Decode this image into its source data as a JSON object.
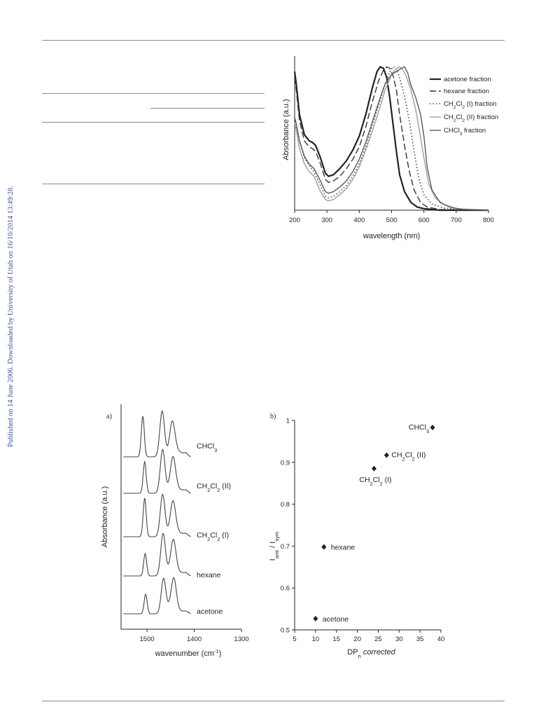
{
  "side_note": "Published on 14 June 2006. Downloaded by University of Utah on 16/10/2014 13:49:28.",
  "chart_data": [
    {
      "type": "line",
      "xlabel": "wavelength (nm)",
      "ylabel": "Absorbance (a.u.)",
      "xlim": [
        200,
        800
      ],
      "ylim": [
        0,
        1.0
      ],
      "x_ticks": [
        "200",
        "300",
        "400",
        "500",
        "600",
        "700",
        "800"
      ],
      "legend": "top-right",
      "series": [
        {
          "name": "acetone fraction",
          "style": "solid-bold",
          "color": "#222222",
          "points": [
            [
              200,
              0.9
            ],
            [
              205,
              0.82
            ],
            [
              215,
              0.62
            ],
            [
              230,
              0.49
            ],
            [
              245,
              0.45
            ],
            [
              255,
              0.44
            ],
            [
              265,
              0.42
            ],
            [
              280,
              0.34
            ],
            [
              295,
              0.24
            ],
            [
              305,
              0.22
            ],
            [
              320,
              0.23
            ],
            [
              340,
              0.27
            ],
            [
              360,
              0.32
            ],
            [
              380,
              0.39
            ],
            [
              400,
              0.48
            ],
            [
              420,
              0.62
            ],
            [
              440,
              0.79
            ],
            [
              455,
              0.9
            ],
            [
              465,
              0.93
            ],
            [
              475,
              0.92
            ],
            [
              485,
              0.86
            ],
            [
              495,
              0.72
            ],
            [
              505,
              0.55
            ],
            [
              515,
              0.38
            ],
            [
              525,
              0.23
            ],
            [
              540,
              0.12
            ],
            [
              560,
              0.05
            ],
            [
              580,
              0.02
            ],
            [
              600,
              0.01
            ],
            [
              650,
              0.0
            ],
            [
              800,
              0.0
            ]
          ]
        },
        {
          "name": "hexane fraction",
          "style": "dash-long",
          "color": "#333333",
          "points": [
            [
              200,
              0.86
            ],
            [
              205,
              0.78
            ],
            [
              215,
              0.58
            ],
            [
              230,
              0.45
            ],
            [
              245,
              0.41
            ],
            [
              255,
              0.4
            ],
            [
              265,
              0.38
            ],
            [
              280,
              0.3
            ],
            [
              295,
              0.2
            ],
            [
              305,
              0.18
            ],
            [
              320,
              0.19
            ],
            [
              340,
              0.22
            ],
            [
              360,
              0.27
            ],
            [
              380,
              0.33
            ],
            [
              400,
              0.41
            ],
            [
              420,
              0.54
            ],
            [
              440,
              0.7
            ],
            [
              460,
              0.84
            ],
            [
              475,
              0.91
            ],
            [
              485,
              0.93
            ],
            [
              495,
              0.92
            ],
            [
              505,
              0.87
            ],
            [
              515,
              0.78
            ],
            [
              525,
              0.62
            ],
            [
              540,
              0.42
            ],
            [
              555,
              0.25
            ],
            [
              570,
              0.13
            ],
            [
              590,
              0.05
            ],
            [
              610,
              0.02
            ],
            [
              650,
              0.005
            ],
            [
              800,
              0.0
            ]
          ]
        },
        {
          "name": "CH₂Cl₂ (I) fraction",
          "style": "dotted",
          "color": "#444444",
          "points": [
            [
              200,
              0.6
            ],
            [
              205,
              0.56
            ],
            [
              215,
              0.45
            ],
            [
              230,
              0.34
            ],
            [
              245,
              0.29
            ],
            [
              260,
              0.25
            ],
            [
              280,
              0.16
            ],
            [
              295,
              0.09
            ],
            [
              305,
              0.08
            ],
            [
              320,
              0.09
            ],
            [
              340,
              0.12
            ],
            [
              360,
              0.16
            ],
            [
              380,
              0.22
            ],
            [
              400,
              0.3
            ],
            [
              420,
              0.41
            ],
            [
              440,
              0.55
            ],
            [
              460,
              0.68
            ],
            [
              480,
              0.82
            ],
            [
              495,
              0.9
            ],
            [
              505,
              0.93
            ],
            [
              515,
              0.92
            ],
            [
              525,
              0.86
            ],
            [
              540,
              0.74
            ],
            [
              555,
              0.58
            ],
            [
              570,
              0.38
            ],
            [
              585,
              0.2
            ],
            [
              600,
              0.1
            ],
            [
              625,
              0.04
            ],
            [
              660,
              0.015
            ],
            [
              700,
              0.005
            ],
            [
              800,
              0.0
            ]
          ]
        },
        {
          "name": "CH₂Cl₂ (II) fraction",
          "style": "solid-light",
          "color": "#a8a8a8",
          "points": [
            [
              200,
              0.57
            ],
            [
              205,
              0.52
            ],
            [
              215,
              0.4
            ],
            [
              230,
              0.3
            ],
            [
              245,
              0.25
            ],
            [
              260,
              0.22
            ],
            [
              280,
              0.12
            ],
            [
              295,
              0.07
            ],
            [
              305,
              0.06
            ],
            [
              320,
              0.07
            ],
            [
              340,
              0.1
            ],
            [
              360,
              0.14
            ],
            [
              380,
              0.2
            ],
            [
              400,
              0.28
            ],
            [
              420,
              0.39
            ],
            [
              440,
              0.51
            ],
            [
              460,
              0.64
            ],
            [
              480,
              0.78
            ],
            [
              500,
              0.88
            ],
            [
              515,
              0.92
            ],
            [
              525,
              0.93
            ],
            [
              535,
              0.91
            ],
            [
              545,
              0.87
            ],
            [
              560,
              0.78
            ],
            [
              575,
              0.65
            ],
            [
              590,
              0.47
            ],
            [
              600,
              0.34
            ],
            [
              615,
              0.17
            ],
            [
              635,
              0.08
            ],
            [
              660,
              0.04
            ],
            [
              700,
              0.01
            ],
            [
              800,
              0.0
            ]
          ]
        },
        {
          "name": "CHCl₃ fraction",
          "style": "solid-mid",
          "color": "#5a5a5a",
          "points": [
            [
              200,
              0.6
            ],
            [
              205,
              0.56
            ],
            [
              215,
              0.45
            ],
            [
              230,
              0.35
            ],
            [
              245,
              0.3
            ],
            [
              260,
              0.27
            ],
            [
              280,
              0.19
            ],
            [
              295,
              0.12
            ],
            [
              305,
              0.11
            ],
            [
              320,
              0.12
            ],
            [
              340,
              0.15
            ],
            [
              360,
              0.19
            ],
            [
              380,
              0.25
            ],
            [
              400,
              0.33
            ],
            [
              420,
              0.44
            ],
            [
              440,
              0.57
            ],
            [
              460,
              0.7
            ],
            [
              480,
              0.82
            ],
            [
              500,
              0.88
            ],
            [
              515,
              0.9
            ],
            [
              530,
              0.92
            ],
            [
              540,
              0.93
            ],
            [
              550,
              0.89
            ],
            [
              560,
              0.81
            ],
            [
              575,
              0.73
            ],
            [
              590,
              0.62
            ],
            [
              600,
              0.48
            ],
            [
              610,
              0.28
            ],
            [
              625,
              0.13
            ],
            [
              650,
              0.05
            ],
            [
              680,
              0.02
            ],
            [
              720,
              0.005
            ],
            [
              800,
              0.0
            ]
          ]
        }
      ]
    },
    {
      "type": "line",
      "panel_label": "a)",
      "xlabel_main": "wavenumber (cm",
      "xlabel_sup": "-1",
      "xlabel_close": ")",
      "ylabel": "Absorbance (a.u.)",
      "xlim": [
        1555,
        1300
      ],
      "x_ticks": [
        1500,
        1400,
        1300
      ],
      "traces": [
        {
          "label": "CHCl₃",
          "label_sub": [],
          "label_y": 640,
          "peaks": [
            [
              1509,
              58
            ],
            [
              1468,
              65
            ],
            [
              1447,
              27
            ]
          ],
          "baseline_slope": 6
        },
        {
          "label": "CH₂Cl₂ (II)",
          "label_y": 697,
          "peaks": [
            [
              1505,
              45
            ],
            [
              1467,
              62
            ],
            [
              1445,
              28
            ]
          ],
          "baseline_slope": 5
        },
        {
          "label": "CH₂Cl₂ (I)",
          "label_y": 767,
          "peaks": [
            [
              1505,
              55
            ],
            [
              1467,
              60
            ],
            [
              1445,
              27
            ]
          ],
          "baseline_slope": 5
        },
        {
          "label": "hexane",
          "label_y": 824,
          "peaks": [
            [
              1504,
              32
            ],
            [
              1466,
              60
            ],
            [
              1444,
              28
            ]
          ],
          "baseline_slope": 5
        },
        {
          "label": "acetone",
          "label_y": 876,
          "peaks": [
            [
              1503,
              28
            ],
            [
              1465,
              50
            ],
            [
              1443,
              28
            ]
          ],
          "baseline_slope": 4
        }
      ]
    },
    {
      "type": "scatter",
      "panel_label": "b)",
      "xlabel_main": "DP",
      "xlabel_sub": "n",
      "xlabel_italic": " corrected",
      "ylabel_parts": [
        "I",
        "anti",
        " / I",
        "sym"
      ],
      "xlim": [
        5,
        40
      ],
      "ylim": [
        0.5,
        1.0
      ],
      "x_ticks": [
        5,
        10,
        15,
        20,
        25,
        30,
        35,
        40
      ],
      "y_ticks": [
        "0.5",
        "0.6",
        "0.7",
        "0.8",
        "0.9",
        "1"
      ],
      "points": [
        {
          "label": "acetone",
          "x": 10.0,
          "y": 0.527
        },
        {
          "label": "hexane",
          "x": 12.0,
          "y": 0.698
        },
        {
          "label": "CH₂Cl₂ (I)",
          "x": 24.0,
          "y": 0.885
        },
        {
          "label": "CH₂Cl₂ (II)",
          "x": 27.0,
          "y": 0.917
        },
        {
          "label": "CHCl₃",
          "x": 38.0,
          "y": 0.983
        }
      ]
    }
  ]
}
